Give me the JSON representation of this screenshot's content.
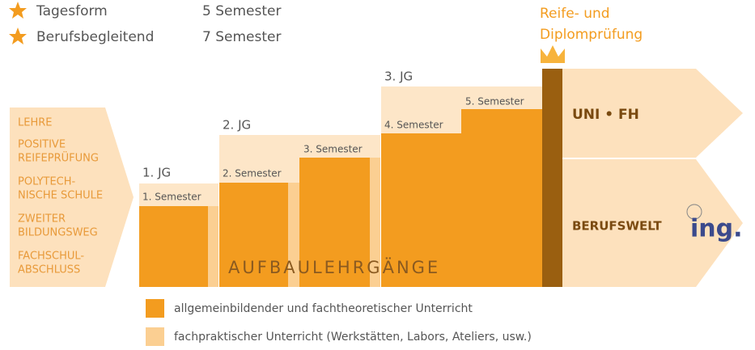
{
  "legend_top": [
    {
      "label": "Tagesform",
      "duration": "5 Semester"
    },
    {
      "label": "Berufsbegleitend",
      "duration": "7 Semester"
    }
  ],
  "entry_requirements": [
    [
      "LEHRE"
    ],
    [
      "POSITIVE",
      "REIFEPRÜFUNG"
    ],
    [
      "POLYTECH-",
      "NISCHE SCHULE"
    ],
    [
      "ZWEITER",
      "BILDUNGSWEG"
    ],
    [
      "FACHSCHUL-",
      "ABSCHLUSS"
    ]
  ],
  "years": [
    "1. JG",
    "2. JG",
    "3. JG"
  ],
  "semesters": [
    "1. Semester",
    "2. Semester",
    "3. Semester",
    "4. Semester",
    "5. Semester"
  ],
  "program": "AUFBAULEHRGÄNGE",
  "exam": [
    "Reife- und",
    "Diplomprüfung"
  ],
  "paths": {
    "upper": "UNI • FH",
    "lower": "BERUFSWELT",
    "logo": "ing."
  },
  "legend_bottom": [
    "allgemeinbildender und fachtheoretischer Unterricht",
    "fachpraktischer Unterricht (Werkstätten, Labors, Ateliers, usw.)"
  ]
}
